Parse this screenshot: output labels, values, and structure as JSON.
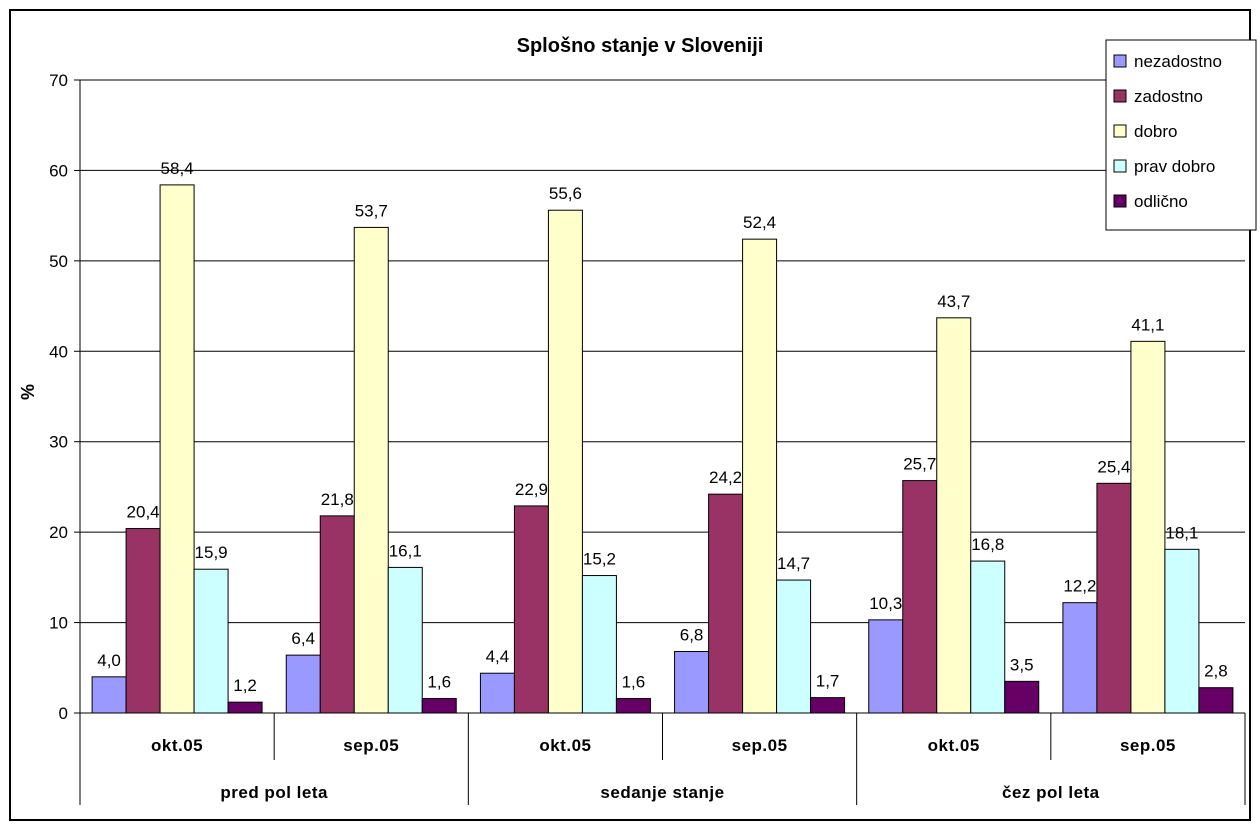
{
  "chart_data": {
    "type": "bar",
    "title": "Splošno stanje v Sloveniji",
    "ylabel": "%",
    "ylim": [
      0,
      70
    ],
    "yticks": [
      "0",
      "10",
      "20",
      "30",
      "40",
      "50",
      "60",
      "70"
    ],
    "grid": true,
    "legend_position": "top-right",
    "groups": [
      {
        "label": "pred pol leta",
        "categories": [
          "okt.05",
          "sep.05"
        ]
      },
      {
        "label": "sedanje stanje",
        "categories": [
          "okt.05",
          "sep.05"
        ]
      },
      {
        "label": "čez pol leta",
        "categories": [
          "okt.05",
          "sep.05"
        ]
      }
    ],
    "categories": [
      "okt.05",
      "sep.05",
      "okt.05",
      "sep.05",
      "okt.05",
      "sep.05"
    ],
    "series": [
      {
        "name": "nezadostno",
        "color": "#9999FF",
        "values": [
          4.0,
          6.4,
          4.4,
          6.8,
          10.3,
          12.2
        ],
        "labels": [
          "4,0",
          "6,4",
          "4,4",
          "6,8",
          "10,3",
          "12,2"
        ]
      },
      {
        "name": "zadostno",
        "color": "#993366",
        "values": [
          20.4,
          21.8,
          22.9,
          24.2,
          25.7,
          25.4
        ],
        "labels": [
          "20,4",
          "21,8",
          "22,9",
          "24,2",
          "25,7",
          "25,4"
        ]
      },
      {
        "name": "dobro",
        "color": "#FFFFCC",
        "values": [
          58.4,
          53.7,
          55.6,
          52.4,
          43.7,
          41.1
        ],
        "labels": [
          "58,4",
          "53,7",
          "55,6",
          "52,4",
          "43,7",
          "41,1"
        ]
      },
      {
        "name": "prav dobro",
        "color": "#CCFFFF",
        "values": [
          15.9,
          16.1,
          15.2,
          14.7,
          16.8,
          18.1
        ],
        "labels": [
          "15,9",
          "16,1",
          "15,2",
          "14,7",
          "16,8",
          "18,1"
        ]
      },
      {
        "name": "odlično",
        "color": "#660066",
        "values": [
          1.2,
          1.6,
          1.6,
          1.7,
          3.5,
          2.8
        ],
        "labels": [
          "1,2",
          "1,6",
          "1,6",
          "1,7",
          "3,5",
          "2,8"
        ]
      }
    ]
  }
}
